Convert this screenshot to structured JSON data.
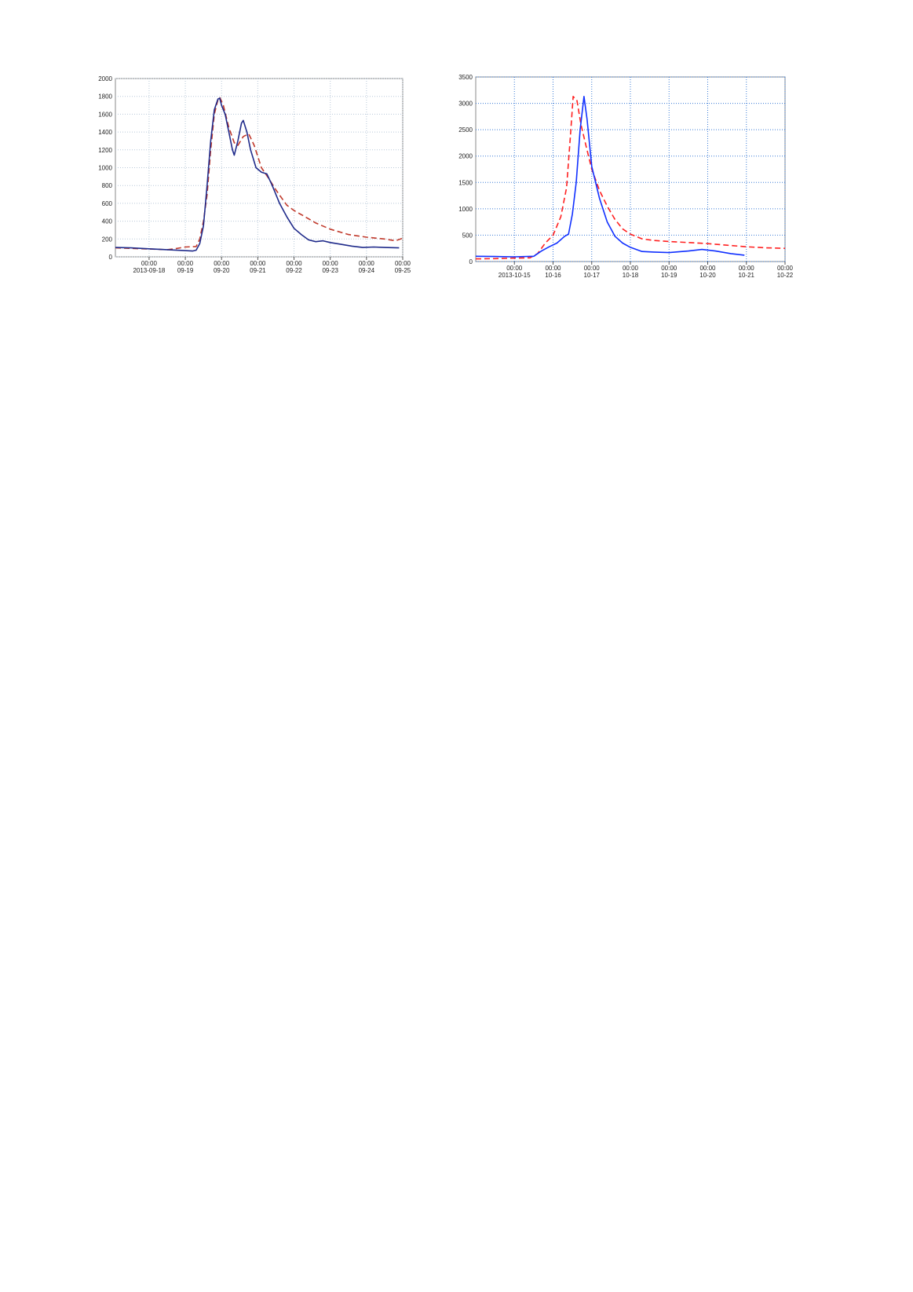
{
  "chart_data": [
    {
      "type": "line",
      "xlim": [
        0.07,
        8
      ],
      "ylim": [
        0,
        2000
      ],
      "yticks": [
        0,
        200,
        400,
        600,
        800,
        1000,
        1200,
        1400,
        1600,
        1800,
        2000
      ],
      "xticks": [
        {
          "value": 1,
          "label": [
            "00:00",
            "2013-09-18"
          ]
        },
        {
          "value": 2,
          "label": [
            "00:00",
            "09-19"
          ]
        },
        {
          "value": 3,
          "label": [
            "00:00",
            "09-20"
          ]
        },
        {
          "value": 4,
          "label": [
            "00:00",
            "09-21"
          ]
        },
        {
          "value": 5,
          "label": [
            "00:00",
            "09-22"
          ]
        },
        {
          "value": 6,
          "label": [
            "00:00",
            "09-23"
          ]
        },
        {
          "value": 7,
          "label": [
            "00:00",
            "09-24"
          ]
        },
        {
          "value": 8,
          "label": [
            "00:00",
            "09-25"
          ]
        }
      ],
      "grid": true,
      "grid_color": "#b8c8d8",
      "series": [
        {
          "color": "#c0392b",
          "dashed": true,
          "x": [
            0.07,
            0.5,
            1,
            1.5,
            1.7,
            2.0,
            2.3,
            2.4,
            2.5,
            2.6,
            2.7,
            2.8,
            2.9,
            2.95,
            3.05,
            3.2,
            3.35,
            3.45,
            3.6,
            3.75,
            3.9,
            4.1,
            4.3,
            4.5,
            4.8,
            5.0,
            5.3,
            5.6,
            6.0,
            6.5,
            7.0,
            7.5,
            7.8,
            8.0
          ],
          "values": [
            100,
            95,
            88,
            80,
            90,
            110,
            115,
            200,
            400,
            700,
            1200,
            1600,
            1760,
            1790,
            1700,
            1450,
            1280,
            1250,
            1350,
            1380,
            1250,
            1000,
            880,
            750,
            580,
            520,
            450,
            380,
            310,
            250,
            220,
            200,
            180,
            210
          ]
        },
        {
          "color": "#1f2a8a",
          "dashed": false,
          "x": [
            0.07,
            0.5,
            1,
            1.5,
            2,
            2.2,
            2.3,
            2.4,
            2.5,
            2.6,
            2.7,
            2.8,
            2.9,
            2.95,
            3.0,
            3.1,
            3.2,
            3.3,
            3.35,
            3.45,
            3.55,
            3.6,
            3.7,
            3.8,
            3.95,
            4.1,
            4.25,
            4.4,
            4.6,
            4.8,
            5.0,
            5.2,
            5.4,
            5.6,
            5.8,
            6.0,
            6.3,
            6.6,
            6.9,
            7.2,
            7.5,
            7.9
          ],
          "values": [
            105,
            100,
            90,
            80,
            70,
            65,
            75,
            150,
            350,
            800,
            1300,
            1650,
            1770,
            1780,
            1700,
            1600,
            1400,
            1200,
            1140,
            1300,
            1500,
            1530,
            1400,
            1200,
            1000,
            950,
            930,
            800,
            600,
            450,
            320,
            250,
            190,
            170,
            180,
            160,
            140,
            120,
            105,
            110,
            105,
            100
          ]
        }
      ]
    },
    {
      "type": "line",
      "xlim": [
        0,
        8
      ],
      "ylim": [
        0,
        3500
      ],
      "yticks": [
        0,
        500,
        1000,
        1500,
        2000,
        2500,
        3000,
        3500
      ],
      "xticks": [
        {
          "value": 1,
          "label": [
            "00:00",
            "2013-10-15"
          ]
        },
        {
          "value": 2,
          "label": [
            "00:00",
            "10-16"
          ]
        },
        {
          "value": 3,
          "label": [
            "00:00",
            "10-17"
          ]
        },
        {
          "value": 4,
          "label": [
            "00:00",
            "10-18"
          ]
        },
        {
          "value": 5,
          "label": [
            "00:00",
            "10-19"
          ]
        },
        {
          "value": 6,
          "label": [
            "00:00",
            "10-20"
          ]
        },
        {
          "value": 7,
          "label": [
            "00:00",
            "10-21"
          ]
        },
        {
          "value": 8,
          "label": [
            "00:00",
            "10-22"
          ]
        }
      ],
      "grid": true,
      "grid_color": "#3a7bd5",
      "series": [
        {
          "color": "#ff2020",
          "dashed": true,
          "x": [
            0,
            0.5,
            1,
            1.4,
            1.6,
            1.8,
            2.0,
            2.2,
            2.35,
            2.45,
            2.52,
            2.62,
            2.72,
            2.85,
            3.0,
            3.2,
            3.4,
            3.6,
            3.8,
            4.0,
            4.3,
            4.6,
            5.0,
            5.5,
            6.0,
            6.5,
            7.0,
            7.5,
            8.0
          ],
          "values": [
            50,
            55,
            65,
            70,
            150,
            350,
            500,
            850,
            1400,
            2400,
            3130,
            3050,
            2600,
            2200,
            1750,
            1350,
            1050,
            800,
            620,
            520,
            430,
            400,
            380,
            360,
            340,
            310,
            280,
            260,
            250
          ]
        },
        {
          "color": "#1030ff",
          "dashed": false,
          "x": [
            0,
            0.5,
            1,
            1.5,
            1.7,
            1.9,
            2.1,
            2.3,
            2.4,
            2.5,
            2.6,
            2.7,
            2.8,
            2.88,
            3.0,
            3.2,
            3.4,
            3.6,
            3.8,
            4.0,
            4.3,
            4.6,
            5.0,
            5.5,
            5.85,
            6.2,
            6.6,
            6.95
          ],
          "values": [
            100,
            95,
            90,
            100,
            200,
            280,
            350,
            480,
            520,
            900,
            1500,
            2500,
            3130,
            2700,
            1800,
            1200,
            750,
            480,
            350,
            270,
            190,
            180,
            170,
            200,
            230,
            200,
            150,
            120
          ]
        }
      ]
    }
  ]
}
